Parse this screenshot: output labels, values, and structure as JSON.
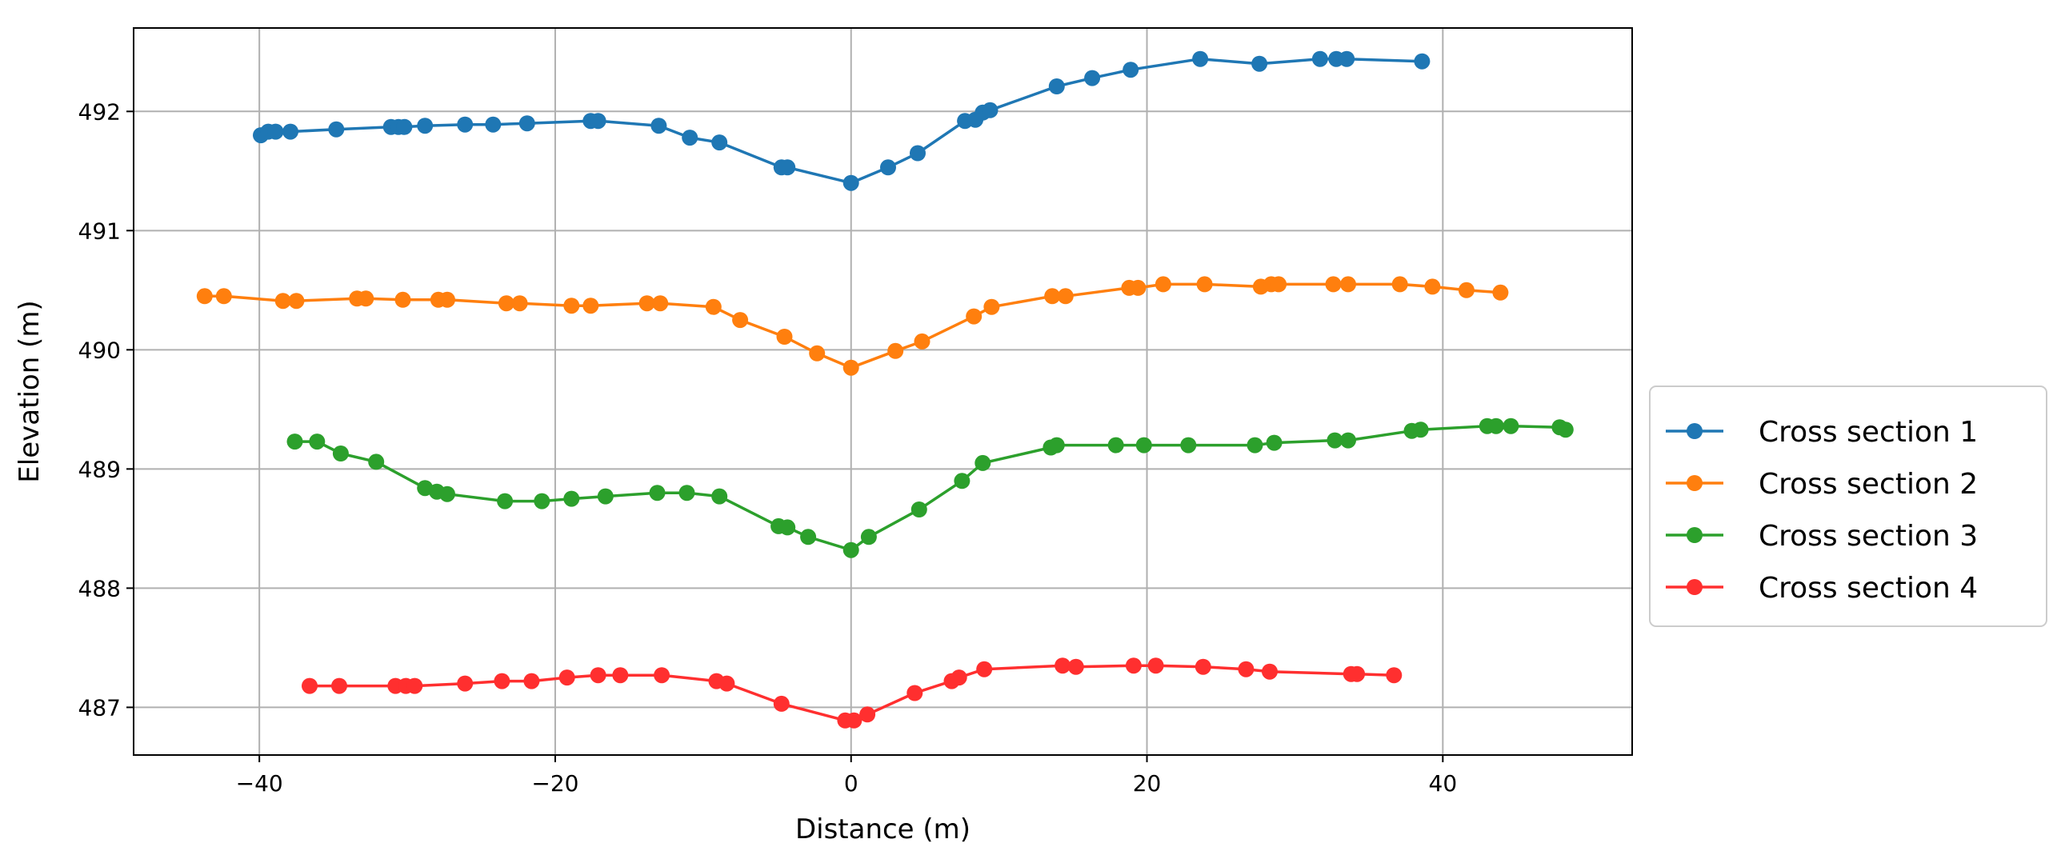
{
  "chart_data": {
    "type": "line",
    "xlabel": "Distance (m)",
    "ylabel": "Elevation (m)",
    "xlim": [
      -48.5,
      52.8
    ],
    "ylim": [
      486.6,
      492.7
    ],
    "xticks": [
      -40,
      -20,
      0,
      20,
      40
    ],
    "xtick_labels": [
      "−40",
      "−20",
      "0",
      "20",
      "40"
    ],
    "yticks": [
      487,
      488,
      489,
      490,
      491,
      492
    ],
    "ytick_labels": [
      "487",
      "488",
      "489",
      "490",
      "491",
      "492"
    ],
    "grid": true,
    "legend_position": "outside-right",
    "series": [
      {
        "name": "Cross section 1",
        "color": "#1f77b4",
        "x": [
          -39.9,
          -39.4,
          -38.9,
          -37.9,
          -34.8,
          -31.1,
          -30.6,
          -30.2,
          -28.8,
          -26.1,
          -24.2,
          -21.9,
          -17.6,
          -17.1,
          -13.0,
          -10.9,
          -8.9,
          -4.7,
          -4.3,
          0.0,
          2.5,
          4.5,
          7.7,
          8.4,
          8.9,
          9.4,
          13.9,
          16.3,
          18.9,
          23.6,
          27.6,
          31.7,
          32.8,
          33.5,
          38.6
        ],
        "y": [
          491.8,
          491.83,
          491.83,
          491.83,
          491.85,
          491.87,
          491.87,
          491.87,
          491.88,
          491.89,
          491.89,
          491.9,
          491.92,
          491.92,
          491.88,
          491.78,
          491.74,
          491.53,
          491.53,
          491.4,
          491.53,
          491.65,
          491.92,
          491.93,
          491.99,
          492.01,
          492.21,
          492.28,
          492.35,
          492.44,
          492.4,
          492.44,
          492.44,
          492.44,
          492.42
        ]
      },
      {
        "name": "Cross section 2",
        "color": "#ff7f0e",
        "x": [
          -43.7,
          -42.4,
          -38.4,
          -37.5,
          -33.4,
          -32.8,
          -30.3,
          -27.9,
          -27.3,
          -23.3,
          -22.4,
          -18.9,
          -17.6,
          -13.8,
          -12.9,
          -9.3,
          -7.5,
          -4.5,
          -2.3,
          0.0,
          3.0,
          4.8,
          8.3,
          9.5,
          13.6,
          14.5,
          18.8,
          19.4,
          21.1,
          23.9,
          27.7,
          28.4,
          28.9,
          32.6,
          33.6,
          37.1,
          39.3,
          41.6,
          43.9
        ],
        "y": [
          490.45,
          490.45,
          490.41,
          490.41,
          490.43,
          490.43,
          490.42,
          490.42,
          490.42,
          490.39,
          490.39,
          490.37,
          490.37,
          490.39,
          490.39,
          490.36,
          490.25,
          490.11,
          489.97,
          489.85,
          489.99,
          490.07,
          490.28,
          490.36,
          490.45,
          490.45,
          490.52,
          490.52,
          490.55,
          490.55,
          490.53,
          490.55,
          490.55,
          490.55,
          490.55,
          490.55,
          490.53,
          490.5,
          490.48
        ]
      },
      {
        "name": "Cross section 3",
        "color": "#2ca02c",
        "x": [
          -37.6,
          -36.1,
          -34.5,
          -32.1,
          -28.8,
          -28.0,
          -27.3,
          -23.4,
          -20.9,
          -18.9,
          -16.6,
          -13.1,
          -11.1,
          -8.9,
          -4.9,
          -4.3,
          -2.9,
          0.0,
          1.2,
          4.6,
          7.5,
          8.9,
          13.5,
          13.9,
          17.9,
          19.8,
          22.8,
          27.3,
          28.6,
          32.7,
          33.6,
          37.9,
          38.5,
          43.0,
          43.6,
          44.6,
          47.9,
          48.3
        ],
        "y": [
          489.23,
          489.23,
          489.13,
          489.06,
          488.84,
          488.81,
          488.79,
          488.73,
          488.73,
          488.75,
          488.77,
          488.8,
          488.8,
          488.77,
          488.52,
          488.51,
          488.43,
          488.32,
          488.43,
          488.66,
          488.9,
          489.05,
          489.18,
          489.2,
          489.2,
          489.2,
          489.2,
          489.2,
          489.22,
          489.24,
          489.24,
          489.32,
          489.33,
          489.36,
          489.36,
          489.36,
          489.35,
          489.33
        ]
      },
      {
        "name": "Cross section 4",
        "color": "#ff2f2f",
        "x": [
          -36.6,
          -34.6,
          -30.8,
          -30.1,
          -29.5,
          -26.1,
          -23.6,
          -21.6,
          -19.2,
          -17.1,
          -15.6,
          -12.8,
          -9.1,
          -8.4,
          -4.7,
          -0.4,
          0.2,
          1.1,
          4.3,
          6.8,
          7.3,
          9.0,
          14.3,
          15.2,
          19.1,
          20.6,
          23.8,
          26.7,
          28.3,
          33.8,
          34.2,
          36.7
        ],
        "y": [
          487.18,
          487.18,
          487.18,
          487.18,
          487.18,
          487.2,
          487.22,
          487.22,
          487.25,
          487.27,
          487.27,
          487.27,
          487.22,
          487.2,
          487.03,
          486.89,
          486.89,
          486.94,
          487.12,
          487.22,
          487.25,
          487.32,
          487.35,
          487.34,
          487.35,
          487.35,
          487.34,
          487.32,
          487.3,
          487.28,
          487.28,
          487.27
        ]
      }
    ]
  }
}
